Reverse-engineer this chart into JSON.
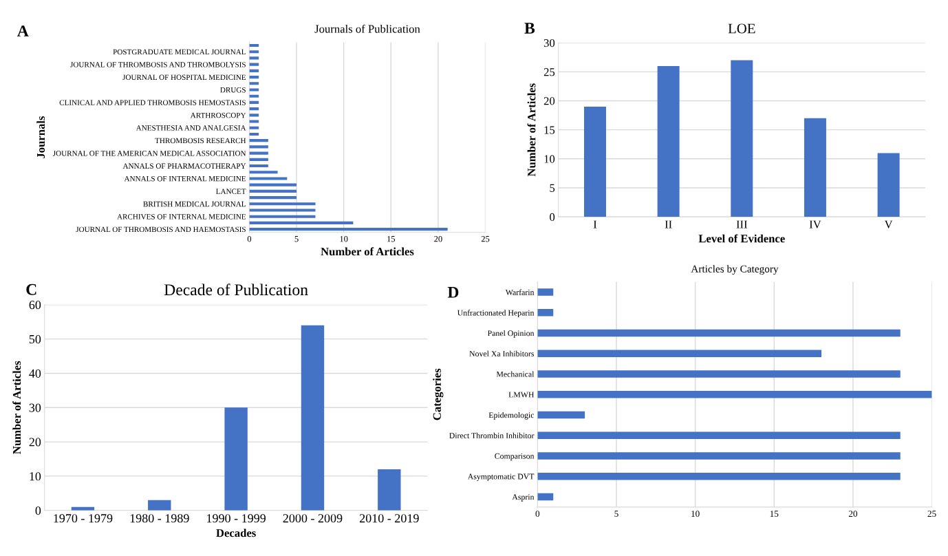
{
  "chart_data": [
    {
      "type": "bar",
      "orientation": "horizontal",
      "title": "Journals of Publication",
      "xlabel": "Number of Articles",
      "ylabel": "Journals",
      "annotations": [
        "A"
      ],
      "categories": [
        null,
        "POSTGRADUATE MEDICAL JOURNAL",
        null,
        "JOURNAL OF THROMBOSIS AND THROMBOLYSIS",
        null,
        "JOURNAL OF HOSPITAL MEDICINE",
        null,
        "DRUGS",
        null,
        "CLINICAL AND APPLIED THROMBOSIS HEMOSTASIS",
        null,
        "ARTHROSCOPY",
        null,
        "ANESTHESIA AND ANALGESIA",
        null,
        "THROMBOSIS RESEARCH",
        null,
        "JOURNAL OF THE AMERICAN MEDICAL ASSOCIATION",
        null,
        "ANNALS OF PHARMACOTHERAPY",
        null,
        "ANNALS OF INTERNAL MEDICINE",
        null,
        "LANCET",
        null,
        "BRITISH MEDICAL JOURNAL",
        null,
        "ARCHIVES OF INTERNAL MEDICINE",
        null,
        "JOURNAL OF THROMBOSIS AND HAEMOSTASIS"
      ],
      "values": [
        1,
        1,
        1,
        1,
        1,
        1,
        1,
        1,
        1,
        1,
        1,
        1,
        1,
        1,
        1,
        2,
        2,
        2,
        2,
        2,
        3,
        4,
        5,
        5,
        5,
        7,
        7,
        7,
        11,
        21
      ],
      "color": "#4472c4",
      "xlim": [
        0,
        25
      ],
      "xticks": [
        0,
        5,
        10,
        15,
        20,
        25
      ],
      "grid": "x"
    },
    {
      "type": "bar",
      "title": "LOE",
      "xlabel": "Level of Evidence",
      "ylabel": "Number of Articles",
      "annotations": [
        "B"
      ],
      "categories": [
        "I",
        "II",
        "III",
        "IV",
        "V"
      ],
      "values": [
        19,
        26,
        27,
        17,
        11
      ],
      "color": "#4472c4",
      "ylim": [
        0,
        30
      ],
      "yticks": [
        0,
        5,
        10,
        15,
        20,
        25,
        30
      ],
      "grid": "y"
    },
    {
      "type": "bar",
      "title": "Decade of Publication",
      "xlabel": "Decades",
      "ylabel": "Number of Articles",
      "annotations": [
        "C"
      ],
      "categories": [
        "1970 - 1979",
        "1980 - 1989",
        "1990 - 1999",
        "2000 - 2009",
        "2010 - 2019"
      ],
      "values": [
        1,
        3,
        30,
        54,
        12
      ],
      "color": "#4472c4",
      "ylim": [
        0,
        60
      ],
      "yticks": [
        0,
        10,
        20,
        30,
        40,
        50,
        60
      ],
      "grid": "y"
    },
    {
      "type": "bar",
      "orientation": "horizontal",
      "title": "Articles by Category",
      "ylabel": "Categories",
      "annotations": [
        "D"
      ],
      "categories": [
        "Warfarin",
        "Unfractionated Heparin",
        "Panel Opinion",
        "Novel Xa Inhibitors",
        "Mechanical",
        "LMWH",
        "Epidemologic",
        "Direct Thrombin Inhibitor",
        "Comparison",
        "Asymptomatic DVT",
        "Asprin"
      ],
      "values": [
        1,
        1,
        23,
        18,
        23,
        25,
        3,
        23,
        23,
        23,
        1
      ],
      "color": "#4472c4",
      "xlim": [
        0,
        25
      ],
      "xticks": [
        0,
        5,
        10,
        15,
        20,
        25
      ],
      "grid": "x"
    }
  ]
}
